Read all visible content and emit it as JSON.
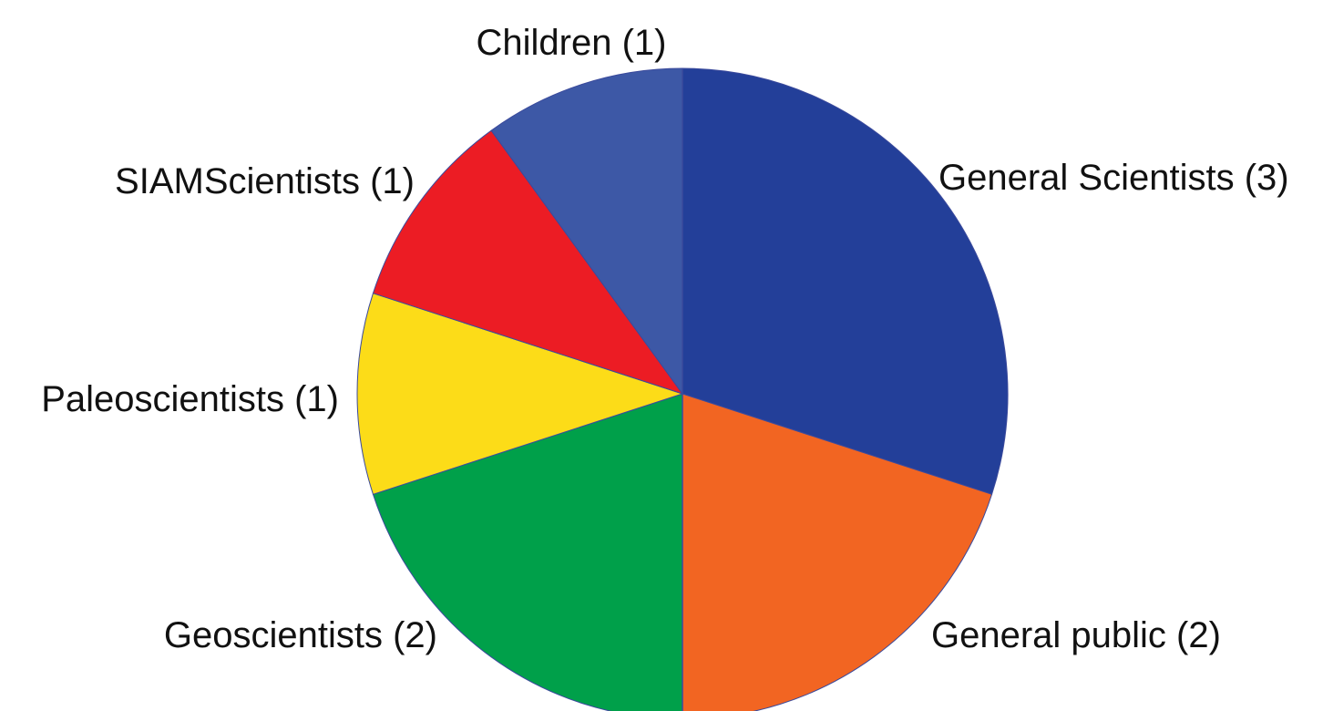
{
  "chart_data": {
    "type": "pie",
    "slices": [
      {
        "label": "General Scientists (3)",
        "value": 3,
        "color": "#233f99"
      },
      {
        "label": "General public (2)",
        "value": 2,
        "color": "#f26522"
      },
      {
        "label": "Geoscientists (2)",
        "value": 2,
        "color": "#00a04a"
      },
      {
        "label": "Paleoscientists (1)",
        "value": 1,
        "color": "#fcdc18"
      },
      {
        "label": "SIAMScientists (1)",
        "value": 1,
        "color": "#ec1c24"
      },
      {
        "label": "Children (1)",
        "value": 1,
        "color": "#3d58a6"
      }
    ],
    "start_angle": "12 o'clock",
    "direction": "clockwise",
    "legend": "none"
  }
}
